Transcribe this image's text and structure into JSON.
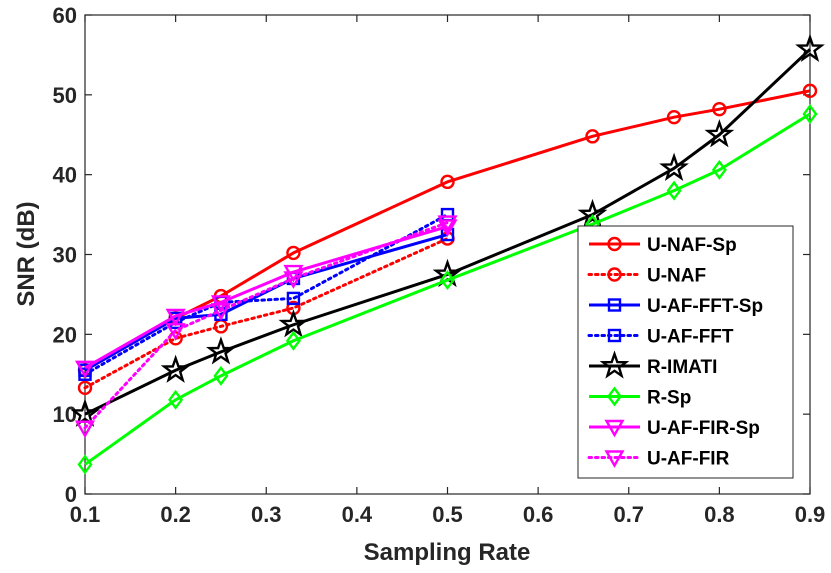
{
  "chart_data": {
    "type": "line",
    "title": "",
    "xlabel": "Sampling Rate",
    "ylabel": "SNR (dB)",
    "xlim": [
      0.1,
      0.9
    ],
    "ylim": [
      0,
      60
    ],
    "xticks": [
      "0.1",
      "0.2",
      "0.3",
      "0.4",
      "0.5",
      "0.6",
      "0.7",
      "0.8",
      "0.9"
    ],
    "yticks": [
      "0",
      "10",
      "20",
      "30",
      "40",
      "50",
      "60"
    ],
    "grid": false,
    "legend_position": "right",
    "series": [
      {
        "name": "U-NAF-Sp",
        "color": "#ff0000",
        "style": "solid",
        "marker": "circle",
        "x": [
          0.1,
          0.2,
          0.25,
          0.33,
          0.5,
          0.66,
          0.75,
          0.8,
          0.9
        ],
        "y": [
          15.5,
          22.0,
          24.8,
          30.2,
          39.1,
          44.8,
          47.2,
          48.2,
          50.5
        ]
      },
      {
        "name": "U-NAF",
        "color": "#ff0000",
        "style": "dotted",
        "marker": "circle",
        "x": [
          0.1,
          0.2,
          0.25,
          0.33,
          0.5
        ],
        "y": [
          13.3,
          19.5,
          21.0,
          23.3,
          32.0
        ]
      },
      {
        "name": "U-AF-FFT-Sp",
        "color": "#0000ff",
        "style": "solid",
        "marker": "square",
        "x": [
          0.1,
          0.2,
          0.25,
          0.33,
          0.5
        ],
        "y": [
          15.5,
          22.0,
          22.5,
          27.0,
          32.5
        ]
      },
      {
        "name": "U-AF-FFT",
        "color": "#0000ff",
        "style": "dotted",
        "marker": "square",
        "x": [
          0.1,
          0.2,
          0.25,
          0.33,
          0.5
        ],
        "y": [
          15.0,
          21.5,
          24.0,
          24.5,
          35.0
        ]
      },
      {
        "name": "R-IMATI",
        "color": "#000000",
        "style": "solid",
        "marker": "star",
        "x": [
          0.1,
          0.2,
          0.25,
          0.33,
          0.5,
          0.66,
          0.75,
          0.8,
          0.9
        ],
        "y": [
          10.0,
          15.5,
          17.8,
          21.2,
          27.5,
          35.0,
          40.8,
          45.0,
          55.7
        ]
      },
      {
        "name": "R-Sp",
        "color": "#00ff00",
        "style": "solid",
        "marker": "diamond",
        "x": [
          0.1,
          0.2,
          0.25,
          0.33,
          0.5,
          0.66,
          0.75,
          0.8,
          0.9
        ],
        "y": [
          3.7,
          11.8,
          14.8,
          19.2,
          26.8,
          33.8,
          38.0,
          40.6,
          47.6
        ]
      },
      {
        "name": "U-AF-FIR-Sp",
        "color": "#ff00ff",
        "style": "solid",
        "marker": "triangle-down",
        "x": [
          0.1,
          0.2,
          0.25,
          0.33,
          0.5
        ],
        "y": [
          15.8,
          22.3,
          24.0,
          27.8,
          33.5
        ]
      },
      {
        "name": "U-AF-FIR",
        "color": "#ff00ff",
        "style": "dotted",
        "marker": "triangle-down",
        "x": [
          0.1,
          0.2,
          0.25,
          0.33,
          0.5
        ],
        "y": [
          8.3,
          20.5,
          23.0,
          27.0,
          34.0
        ]
      }
    ]
  }
}
